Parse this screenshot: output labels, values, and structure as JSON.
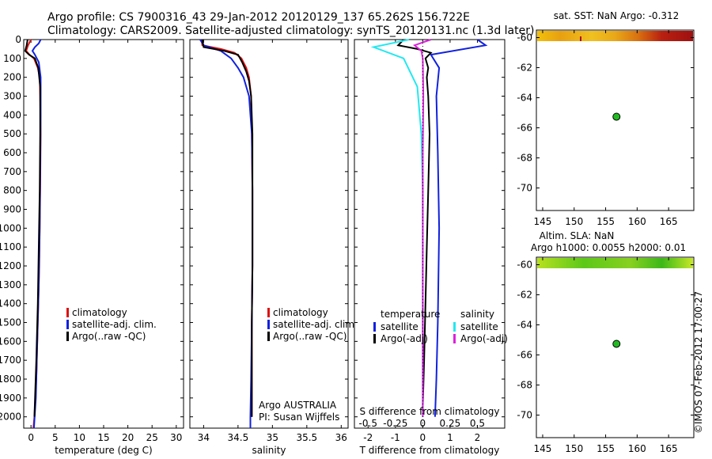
{
  "header": {
    "line1": "Argo profile: CS 7900316_43 29-Jan-2012 20120129_137 65.262S 156.722E",
    "line2": "Climatology: CARS2009. Satellite-adjusted climatology: synTS_20120131.nc (1.3d later)"
  },
  "credit": "©IMOS 07-Feb-2012 17:00:27",
  "colors": {
    "climatology": "#dd1111",
    "satellite": "#1122dd",
    "argo": "#000000",
    "sat_salinity": "#22e8f0",
    "argo_salinity_adj": "#dd22dd",
    "marker": "#22bb22"
  },
  "chart_data": [
    {
      "id": "temperature",
      "type": "line",
      "xlabel": "temperature (deg C)",
      "ylabel": "",
      "xlim": [
        -1.5,
        31.5
      ],
      "ylim": [
        2060,
        0
      ],
      "xticks": [
        0,
        5,
        10,
        15,
        20,
        25,
        30
      ],
      "yticks": [
        0,
        100,
        200,
        300,
        400,
        500,
        600,
        700,
        800,
        900,
        1000,
        1100,
        1200,
        1300,
        1400,
        1500,
        1600,
        1700,
        1800,
        1900,
        2000
      ],
      "legend": [
        "climatology",
        "satellite-adj. clim.",
        "Argo(..raw -QC)"
      ],
      "series": [
        {
          "name": "climatology",
          "color": "#dd1111",
          "points": [
            [
              0.0,
              0
            ],
            [
              -0.6,
              30
            ],
            [
              -1.0,
              60
            ],
            [
              -0.3,
              80
            ],
            [
              0.6,
              100
            ],
            [
              1.4,
              150
            ],
            [
              1.8,
              200
            ],
            [
              1.9,
              300
            ],
            [
              2.0,
              500
            ],
            [
              1.9,
              800
            ],
            [
              1.7,
              1200
            ],
            [
              1.4,
              1500
            ],
            [
              1.1,
              1800
            ],
            [
              0.7,
              2000
            ],
            [
              0.5,
              2060
            ]
          ]
        },
        {
          "name": "satellite-adj. clim.",
          "color": "#1122dd",
          "points": [
            [
              2.0,
              0
            ],
            [
              1.6,
              20
            ],
            [
              0.8,
              40
            ],
            [
              0.3,
              60
            ],
            [
              0.8,
              80
            ],
            [
              1.6,
              120
            ],
            [
              2.0,
              200
            ],
            [
              2.0,
              400
            ],
            [
              1.9,
              700
            ],
            [
              1.8,
              1000
            ],
            [
              1.6,
              1300
            ],
            [
              1.3,
              1600
            ],
            [
              1.0,
              1900
            ],
            [
              0.6,
              2060
            ]
          ]
        },
        {
          "name": "Argo(..raw -QC)",
          "color": "#000000",
          "points": [
            [
              -0.7,
              0
            ],
            [
              -0.9,
              30
            ],
            [
              -1.2,
              60
            ],
            [
              -0.4,
              80
            ],
            [
              0.8,
              100
            ],
            [
              1.5,
              150
            ],
            [
              1.9,
              250
            ],
            [
              1.9,
              500
            ],
            [
              1.8,
              800
            ],
            [
              1.6,
              1100
            ],
            [
              1.4,
              1400
            ],
            [
              1.1,
              1700
            ],
            [
              0.7,
              2000
            ]
          ]
        }
      ]
    },
    {
      "id": "salinity",
      "type": "line",
      "xlabel": "salinity",
      "xlim": [
        33.8,
        36.1
      ],
      "ylim": [
        2060,
        0
      ],
      "xticks": [
        34,
        34.5,
        35,
        35.5,
        36
      ],
      "legend": [
        "climatology",
        "satellite-adj. clim.",
        "Argo(..raw -QC)"
      ],
      "annotation": [
        "Argo AUSTRALIA",
        "PI: Susan Wijffels"
      ],
      "series": [
        {
          "name": "climatology",
          "color": "#dd1111",
          "points": [
            [
              33.97,
              0
            ],
            [
              33.98,
              30
            ],
            [
              34.25,
              50
            ],
            [
              34.45,
              70
            ],
            [
              34.55,
              100
            ],
            [
              34.62,
              150
            ],
            [
              34.66,
              200
            ],
            [
              34.69,
              300
            ],
            [
              34.7,
              500
            ],
            [
              34.71,
              800
            ],
            [
              34.71,
              1200
            ],
            [
              34.7,
              1500
            ],
            [
              34.7,
              1800
            ],
            [
              34.7,
              2000
            ]
          ]
        },
        {
          "name": "satellite-adj. clim.",
          "color": "#1122dd",
          "points": [
            [
              33.95,
              0
            ],
            [
              34.0,
              30
            ],
            [
              34.25,
              60
            ],
            [
              34.4,
              100
            ],
            [
              34.5,
              150
            ],
            [
              34.58,
              200
            ],
            [
              34.66,
              300
            ],
            [
              34.7,
              500
            ],
            [
              34.71,
              800
            ],
            [
              34.71,
              1200
            ],
            [
              34.7,
              1500
            ],
            [
              34.69,
              1800
            ],
            [
              34.68,
              2000
            ],
            [
              34.68,
              2060
            ]
          ]
        },
        {
          "name": "Argo(..raw -QC)",
          "color": "#000000",
          "points": [
            [
              33.98,
              0
            ],
            [
              34.0,
              40
            ],
            [
              34.3,
              60
            ],
            [
              34.5,
              80
            ],
            [
              34.56,
              120
            ],
            [
              34.62,
              170
            ],
            [
              34.66,
              220
            ],
            [
              34.69,
              300
            ],
            [
              34.71,
              500
            ],
            [
              34.71,
              800
            ],
            [
              34.71,
              1200
            ],
            [
              34.7,
              1500
            ],
            [
              34.7,
              1800
            ],
            [
              34.7,
              2000
            ]
          ]
        }
      ]
    },
    {
      "id": "differences",
      "type": "line",
      "xlabel": "T difference from climatology",
      "xlabel_top": "S difference from climatology",
      "xlim": [
        -2.5,
        3.0
      ],
      "ylim": [
        2060,
        0
      ],
      "xticks": [
        -2,
        -1,
        0,
        1,
        2
      ],
      "xticks_top": [
        -0.5,
        -0.25,
        0,
        0.25,
        0.5
      ],
      "legend_left_title": "temperature",
      "legend_right_title": "salinity",
      "legend": [
        {
          "label": "satellite",
          "color": "#1122dd"
        },
        {
          "label": "Argo(-adj)",
          "color": "#000000"
        },
        {
          "label": "satellite",
          "color": "#22e8f0"
        },
        {
          "label": "Argo(-adj)",
          "color": "#dd22dd"
        }
      ],
      "series": [
        {
          "name": "T satellite",
          "color": "#1122dd",
          "points": [
            [
              2.0,
              0
            ],
            [
              2.3,
              30
            ],
            [
              0.3,
              80
            ],
            [
              0.6,
              150
            ],
            [
              0.5,
              300
            ],
            [
              0.55,
              600
            ],
            [
              0.6,
              1000
            ],
            [
              0.55,
              1500
            ],
            [
              0.5,
              1800
            ],
            [
              0.45,
              2000
            ]
          ]
        },
        {
          "name": "T Argo(-adj)",
          "color": "#000000",
          "points": [
            [
              -0.7,
              0
            ],
            [
              -0.9,
              30
            ],
            [
              -0.2,
              50
            ],
            [
              0.3,
              70
            ],
            [
              0.1,
              100
            ],
            [
              0.2,
              150
            ],
            [
              0.15,
              200
            ],
            [
              0.2,
              300
            ],
            [
              0.25,
              500
            ],
            [
              0.2,
              800
            ],
            [
              0.15,
              1100
            ],
            [
              0.1,
              1400
            ],
            [
              0.05,
              1700
            ],
            [
              0.0,
              1950
            ]
          ]
        },
        {
          "name": "S satellite",
          "color": "#22e8f0",
          "points": [
            [
              -0.5,
              0
            ],
            [
              -1.8,
              40
            ],
            [
              -0.7,
              100
            ],
            [
              -0.2,
              250
            ],
            [
              -0.05,
              500
            ],
            [
              0.0,
              800
            ],
            [
              0.0,
              1200
            ],
            [
              0.0,
              1600
            ],
            [
              0.0,
              2000
            ]
          ]
        },
        {
          "name": "S Argo(-adj)",
          "color": "#dd22dd",
          "points": [
            [
              0.3,
              0
            ],
            [
              -0.3,
              30
            ],
            [
              -0.05,
              60
            ],
            [
              0.0,
              100
            ],
            [
              0.02,
              300
            ],
            [
              0.0,
              600
            ],
            [
              0.0,
              1200
            ],
            [
              0.0,
              2000
            ]
          ]
        }
      ]
    },
    {
      "id": "sst-map",
      "type": "heatmap",
      "title": "sat. SST: NaN Argo: -0.312",
      "xlim": [
        144,
        169
      ],
      "ylim": [
        -71.5,
        -59.5
      ],
      "xticks": [
        145,
        150,
        155,
        160,
        165
      ],
      "yticks": [
        -60,
        -62,
        -64,
        -66,
        -68,
        -70
      ],
      "marker": {
        "lon": 156.722,
        "lat": -65.262
      }
    },
    {
      "id": "sla-map",
      "type": "heatmap",
      "title": "Altim. SLA: NaN",
      "subtitle": "Argo h1000: 0.0055 h2000: 0.01",
      "xlim": [
        144,
        169
      ],
      "ylim": [
        -71.5,
        -59.5
      ],
      "xticks": [
        145,
        150,
        155,
        160,
        165
      ],
      "yticks": [
        -60,
        -62,
        -64,
        -66,
        -68,
        -70
      ],
      "marker": {
        "lon": 156.722,
        "lat": -65.262
      }
    }
  ]
}
